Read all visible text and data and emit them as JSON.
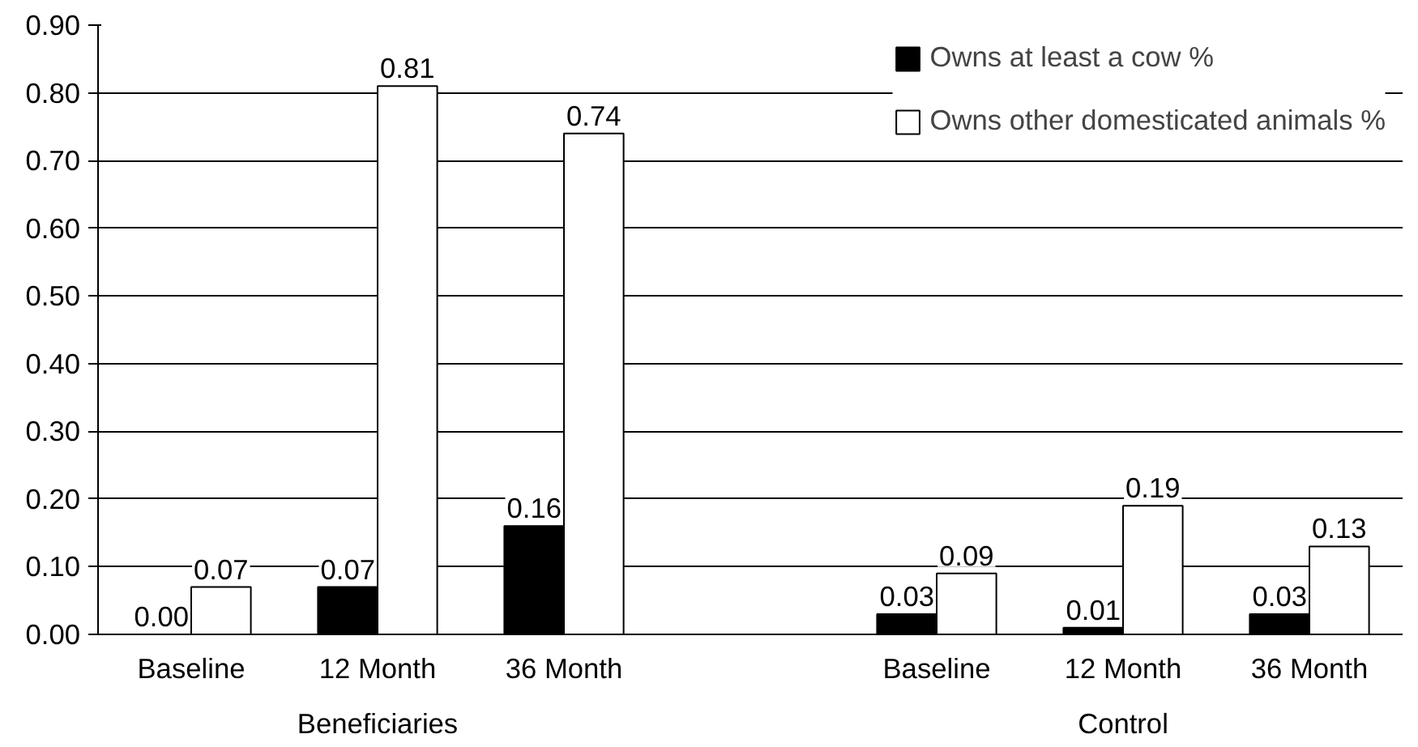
{
  "chart_data": {
    "type": "bar",
    "categories": [
      "Baseline",
      "12 Month",
      "36 Month",
      null,
      "Baseline",
      "12 Month",
      "36 Month"
    ],
    "series": [
      {
        "name": "Owns at least a cow %",
        "color": "#000000",
        "values": [
          0,
          0.07,
          0.16,
          null,
          0.03,
          0.01,
          0.03
        ],
        "value_labels": [
          "0.00",
          "0.07",
          "0.16",
          null,
          "0.03",
          "0.01",
          "0.03"
        ]
      },
      {
        "name": "Owns other domesticated animals %",
        "color": "#ffffff",
        "values": [
          0.07,
          0.81,
          0.74,
          null,
          0.09,
          0.19,
          0.13
        ],
        "value_labels": [
          "0.07",
          "0.81",
          "0.74",
          null,
          "0.09",
          "0.19",
          "0.13"
        ]
      }
    ],
    "annotations": [
      "Beneficiaries",
      "Control"
    ],
    "ylim": [
      0,
      0.9
    ],
    "yticks": [
      {
        "value": 0,
        "label": "0.00"
      },
      {
        "value": 0.1,
        "label": "0.10"
      },
      {
        "value": 0.2,
        "label": "0.20"
      },
      {
        "value": 0.3,
        "label": "0.30"
      },
      {
        "value": 0.4,
        "label": "0.40"
      },
      {
        "value": 0.5,
        "label": "0.50"
      },
      {
        "value": 0.6,
        "label": "0.60"
      },
      {
        "value": 0.7,
        "label": "0.70"
      },
      {
        "value": 0.8,
        "label": "0.80"
      },
      {
        "value": 0.9,
        "label": "0.90"
      }
    ],
    "grid": "y",
    "legend": "top right"
  }
}
